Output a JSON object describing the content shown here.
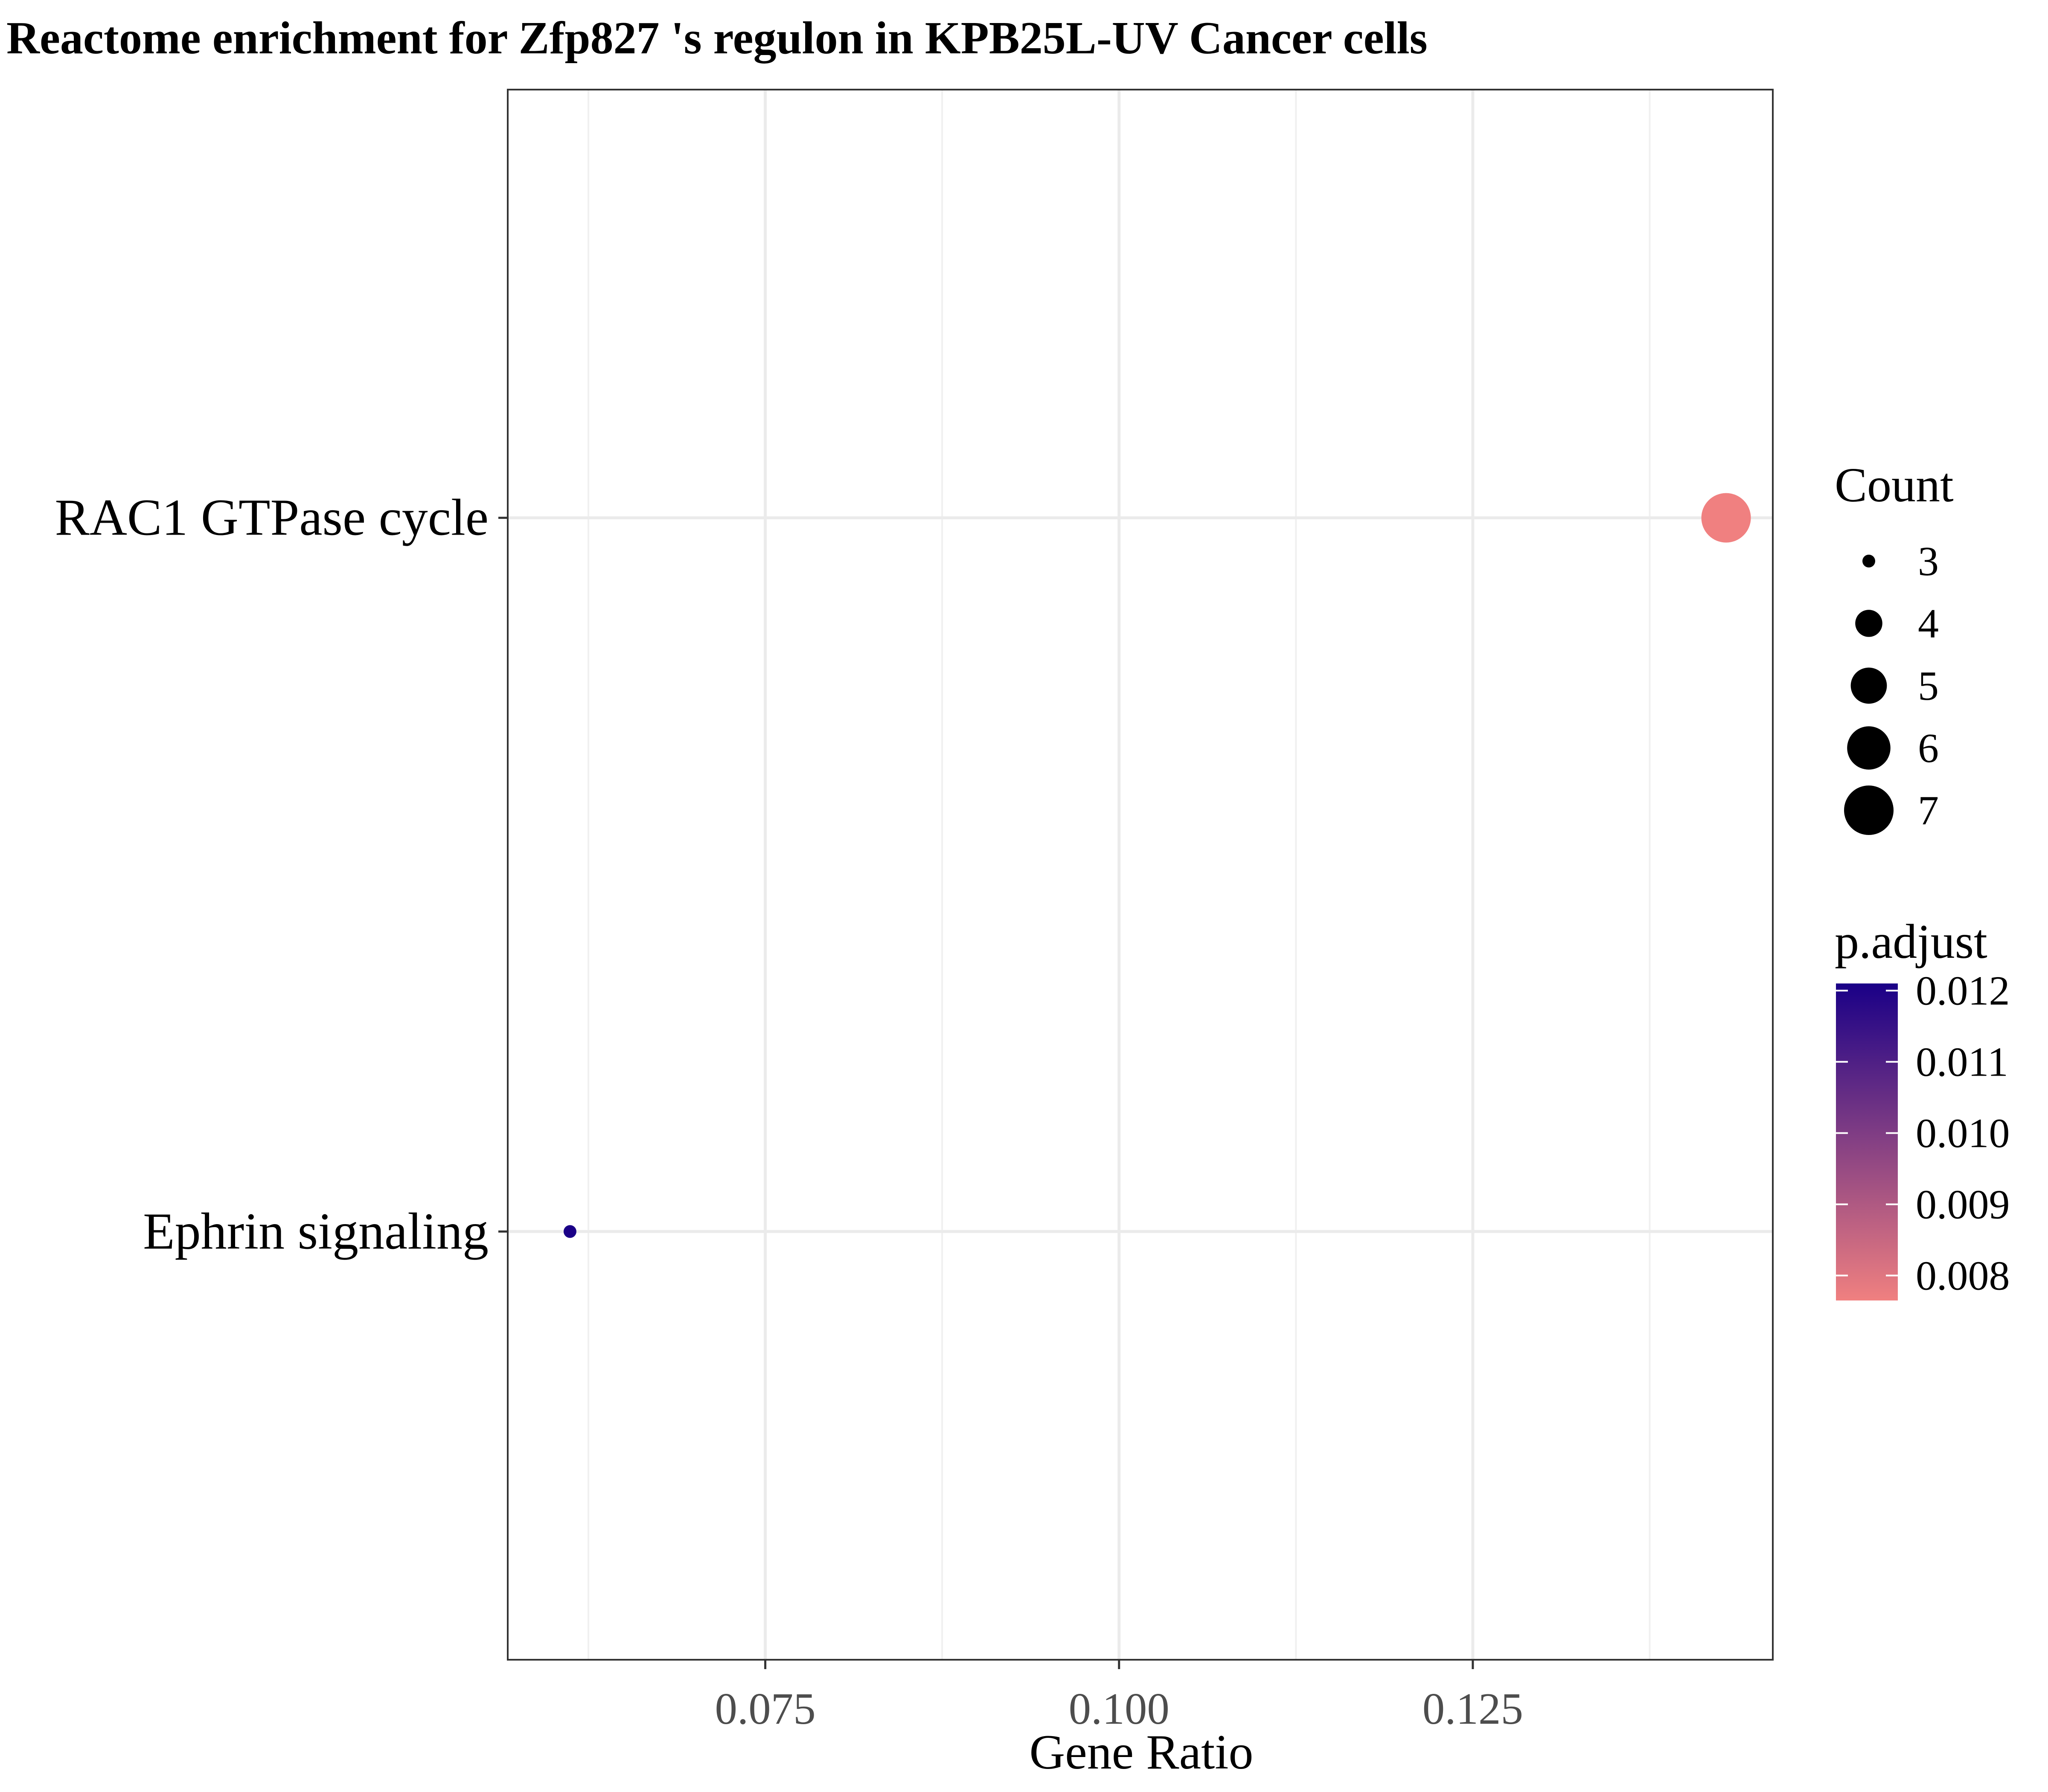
{
  "chart_data": {
    "type": "scatter",
    "title": "Reactome enrichment for Zfp827 's regulon in KPB25L-UV Cancer cells",
    "xlabel": "Gene Ratio",
    "ylabel": "",
    "xlim": [
      0.0568,
      0.1462
    ],
    "x_ticks": [
      "0.075",
      "0.100",
      "0.125"
    ],
    "x_tick_values": [
      0.075,
      0.1,
      0.125
    ],
    "x_minor_values": [
      0.0625,
      0.0875,
      0.1125,
      0.1375
    ],
    "categories": [
      "RAC1 GTPase cycle",
      "Ephrin signaling"
    ],
    "points": [
      {
        "term": "RAC1 GTPase cycle",
        "gene_ratio": 0.1429,
        "count": 7,
        "p_adjust": 0.00765
      },
      {
        "term": "Ephrin signaling",
        "gene_ratio": 0.0612,
        "count": 3,
        "p_adjust": 0.0121
      }
    ],
    "grid": true,
    "legend_position": "right",
    "size_legend": {
      "title": "Count",
      "values": [
        3,
        4,
        5,
        6,
        7
      ],
      "labels": [
        "3",
        "4",
        "5",
        "6",
        "7"
      ]
    },
    "color_legend": {
      "title": "p.adjust",
      "range": [
        0.00765,
        0.0121
      ],
      "ticks": [
        0.012,
        0.011,
        0.01,
        0.009,
        0.008
      ],
      "labels": [
        "0.012",
        "0.011",
        "0.010",
        "0.009",
        "0.008"
      ],
      "low_color": "#F08080",
      "high_color": "#1A0087"
    }
  }
}
